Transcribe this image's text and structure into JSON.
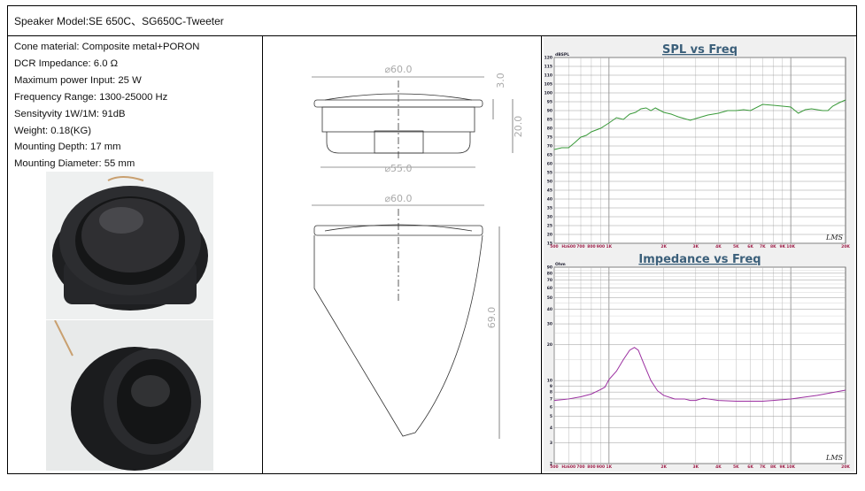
{
  "header": {
    "title": "Speaker Model:SE 650C、SG650C-Tweeter"
  },
  "specs": [
    "Cone material: Composite metal+PORON",
    "DCR Impedance: 6.0 Ω",
    "Maximum power Input: 25 W",
    "Frequency Range: 1300-25000 Hz",
    "Sensityvity 1W/1M: 91dB",
    "Weight: 0.18(KG)",
    "Mounting Depth: 17 mm",
    "Mounting Diameter: 55 mm"
  ],
  "drawing": {
    "top_dia": "⌀60.0",
    "top_h1": "3.0",
    "top_h2": "20.0",
    "top_mount": "⌀55.0",
    "side_dia": "⌀60.0",
    "side_h": "69.0"
  },
  "photos": [
    "tweeter-front-photo",
    "tweeter-angled-photo"
  ],
  "chart_data": [
    {
      "type": "line",
      "title": "SPL vs Freq",
      "ylabel": "dBSPL",
      "xlabel": "",
      "x_scale": "log",
      "ylim": [
        15,
        120
      ],
      "xlim": [
        500,
        20000
      ],
      "grid": true,
      "x_ticks": [
        {
          "v": 500,
          "l": "500"
        },
        {
          "v": 600,
          "l": "Hz600"
        },
        {
          "v": 700,
          "l": "700"
        },
        {
          "v": 800,
          "l": "800"
        },
        {
          "v": 900,
          "l": "900"
        },
        {
          "v": 1000,
          "l": "1K"
        },
        {
          "v": 2000,
          "l": "2K"
        },
        {
          "v": 3000,
          "l": "3K"
        },
        {
          "v": 4000,
          "l": "4K"
        },
        {
          "v": 5000,
          "l": "5K"
        },
        {
          "v": 6000,
          "l": "6K"
        },
        {
          "v": 7000,
          "l": "7K"
        },
        {
          "v": 8000,
          "l": "8K"
        },
        {
          "v": 9000,
          "l": "9K"
        },
        {
          "v": 10000,
          "l": "10K"
        },
        {
          "v": 20000,
          "l": "20K"
        }
      ],
      "y_ticks": [
        120,
        115,
        110,
        105,
        100,
        95,
        90,
        85,
        80,
        75,
        70,
        65,
        60,
        55,
        50,
        45,
        40,
        35,
        30,
        25,
        20,
        15
      ],
      "color": "#3a9a3a",
      "watermark": "LMS",
      "x": [
        500,
        550,
        600,
        650,
        700,
        750,
        800,
        900,
        1000,
        1100,
        1200,
        1300,
        1400,
        1500,
        1600,
        1700,
        1800,
        2000,
        2200,
        2400,
        2800,
        3000,
        3500,
        4000,
        4500,
        5000,
        5500,
        6000,
        7000,
        8000,
        9000,
        10000,
        11000,
        12000,
        13000,
        15000,
        16000,
        17000,
        18500,
        20000
      ],
      "y": [
        68,
        69,
        69,
        72,
        75,
        76,
        78,
        80,
        83,
        86,
        85,
        88,
        89,
        91,
        91.5,
        90,
        91.5,
        89,
        88,
        86.5,
        84.5,
        85.5,
        87.5,
        88.5,
        90,
        90,
        90.5,
        90,
        93.5,
        93,
        92.5,
        92,
        88.5,
        90.5,
        91,
        90,
        90,
        92.5,
        94.5,
        96
      ]
    },
    {
      "type": "line",
      "title": "Impedance vs Freq",
      "ylabel": "Ohm",
      "xlabel": "",
      "x_scale": "log",
      "y_scale": "log",
      "ylim": [
        2,
        90
      ],
      "xlim": [
        500,
        20000
      ],
      "grid": true,
      "x_ticks": [
        {
          "v": 500,
          "l": "500"
        },
        {
          "v": 600,
          "l": "Hz600"
        },
        {
          "v": 700,
          "l": "700"
        },
        {
          "v": 800,
          "l": "800"
        },
        {
          "v": 900,
          "l": "900"
        },
        {
          "v": 1000,
          "l": "1K"
        },
        {
          "v": 2000,
          "l": "2K"
        },
        {
          "v": 3000,
          "l": "3K"
        },
        {
          "v": 4000,
          "l": "4K"
        },
        {
          "v": 5000,
          "l": "5K"
        },
        {
          "v": 6000,
          "l": "6K"
        },
        {
          "v": 7000,
          "l": "7K"
        },
        {
          "v": 8000,
          "l": "8K"
        },
        {
          "v": 9000,
          "l": "9K"
        },
        {
          "v": 10000,
          "l": "10K"
        },
        {
          "v": 20000,
          "l": "20K"
        }
      ],
      "y_ticks": [
        90,
        80,
        70,
        60,
        50,
        40,
        30,
        20,
        10,
        9,
        8,
        7,
        6,
        5,
        4,
        3,
        2
      ],
      "color": "#9b2fa0",
      "watermark": "LMS",
      "x": [
        500,
        600,
        700,
        800,
        900,
        950,
        1000,
        1100,
        1200,
        1300,
        1380,
        1450,
        1550,
        1700,
        1850,
        2000,
        2300,
        2600,
        2800,
        3000,
        3300,
        3500,
        4000,
        5000,
        7000,
        8000,
        10000,
        14000,
        20000
      ],
      "y": [
        6.8,
        7.0,
        7.3,
        7.7,
        8.4,
        8.8,
        10.2,
        12,
        15,
        18,
        19,
        18,
        14,
        10,
        8.2,
        7.5,
        7.0,
        7.0,
        6.8,
        6.8,
        7.1,
        7.0,
        6.8,
        6.7,
        6.7,
        6.8,
        7.0,
        7.5,
        8.3
      ]
    }
  ]
}
